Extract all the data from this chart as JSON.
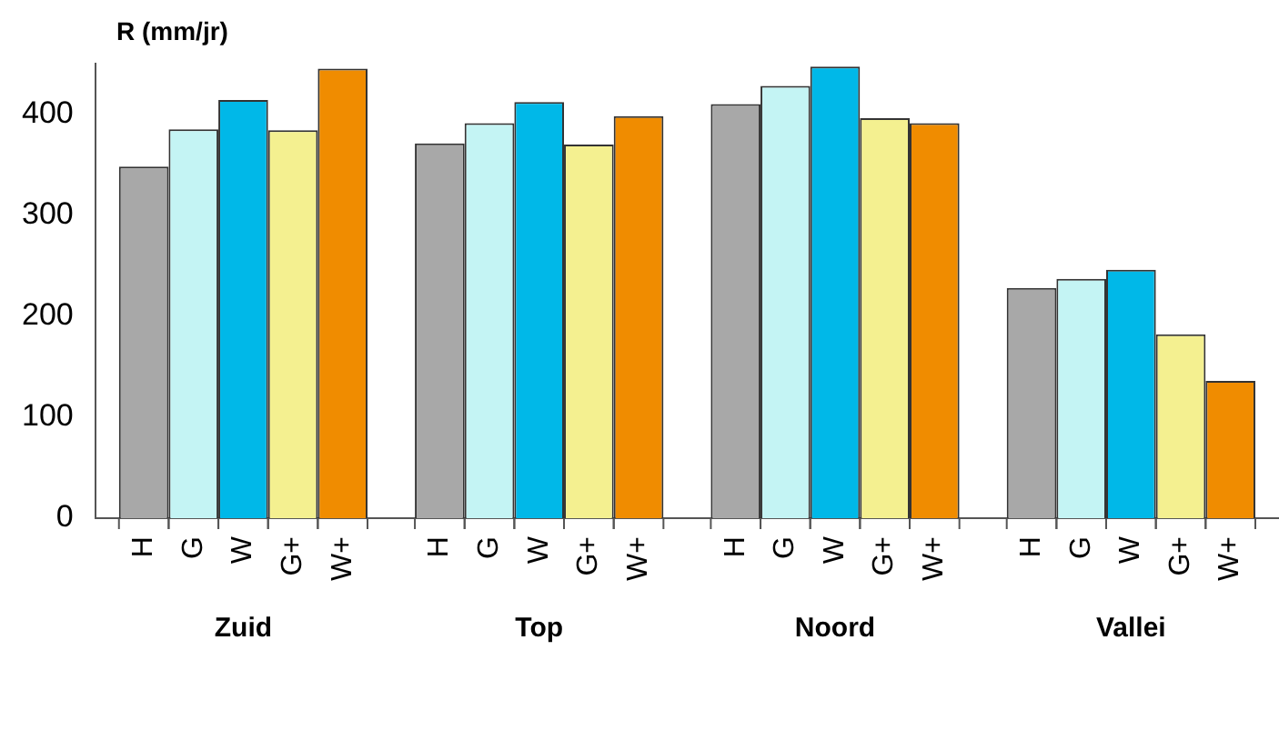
{
  "chart_data": {
    "type": "bar",
    "ylabel": "R (mm/jr)",
    "categories": [
      "Zuid",
      "Top",
      "Noord",
      "Vallei"
    ],
    "ylim": [
      0,
      450
    ],
    "yticks": [
      0,
      100,
      200,
      300,
      400
    ],
    "grid": false,
    "legend": false,
    "series": [
      {
        "name": "H",
        "color": "#a8a8a8",
        "values": [
          348,
          371,
          410,
          228
        ]
      },
      {
        "name": "G",
        "color": "#c4f4f4",
        "values": [
          385,
          391,
          428,
          237
        ]
      },
      {
        "name": "W",
        "color": "#00b8e8",
        "values": [
          414,
          412,
          447,
          246
        ]
      },
      {
        "name": "G+",
        "color": "#f4f090",
        "values": [
          384,
          370,
          396,
          182
        ]
      },
      {
        "name": "W+",
        "color": "#f08c00",
        "values": [
          445,
          398,
          391,
          136
        ]
      }
    ]
  }
}
